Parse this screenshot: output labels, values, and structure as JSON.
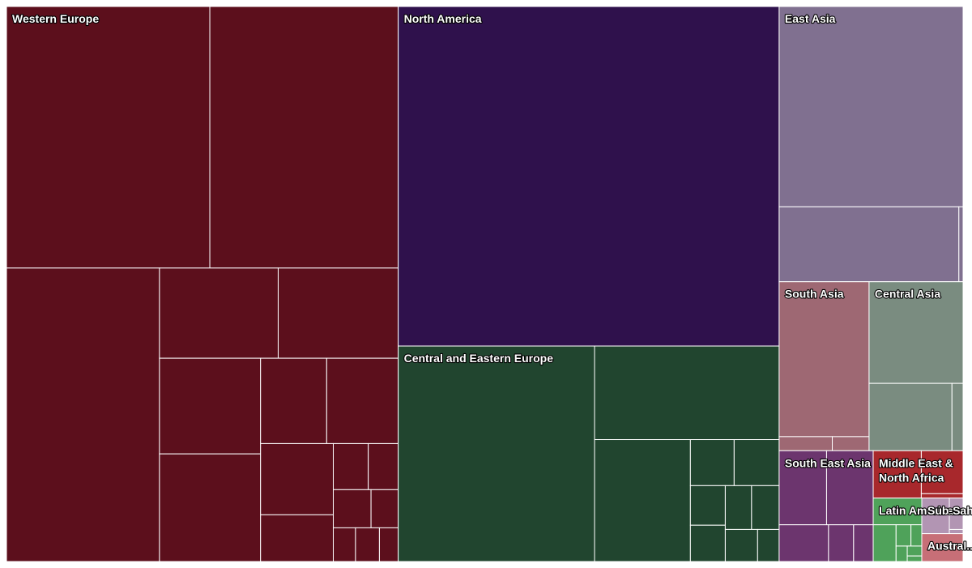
{
  "chart_data": {
    "type": "treemap",
    "title": "",
    "regions": [
      {
        "name": "Western Europe",
        "label_lines": [
          "Western Europe"
        ],
        "color": "#5c0f1c",
        "values": [
          9240,
          8560,
          7800,
          1860,
          1880,
          1680,
          1890,
          980,
          1060,
          900,
          590,
          280,
          240,
          250,
          180,
          130,
          140,
          110
        ]
      },
      {
        "name": "North America",
        "label_lines": [
          "North America"
        ],
        "color": "#2f114c",
        "values": [
          22470
        ]
      },
      {
        "name": "Central and Eastern Europe",
        "label_lines": [
          "Central and Eastern Europe"
        ],
        "color": "#21452f",
        "values": [
          7350,
          3000,
          2030,
          350,
          360,
          240,
          220,
          200,
          210,
          180,
          120
        ]
      },
      {
        "name": "East Asia",
        "label_lines": [
          "East Asia"
        ],
        "color": "#807090",
        "values": [
          6400,
          2340,
          55
        ]
      },
      {
        "name": "South Asia",
        "label_lines": [
          "South Asia"
        ],
        "color": "#9e6873",
        "values": [
          2420,
          130,
          90
        ]
      },
      {
        "name": "Central Asia",
        "label_lines": [
          "Central Asia"
        ],
        "color": "#7a8c80",
        "values": [
          1660,
          970,
          130
        ]
      },
      {
        "name": "South East Asia",
        "label_lines": [
          "South East Asia"
        ],
        "color": "#6c356e",
        "values": [
          610,
          600,
          315,
          160,
          125
        ]
      },
      {
        "name": "Middle East & North Africa",
        "label_lines": [
          "Middle East &",
          "North Africa"
        ],
        "color": "#a8282c",
        "values": [
          396,
          312,
          32
        ]
      },
      {
        "name": "Latin America & Caribbean",
        "label_lines": [
          "Latin America..."
        ],
        "color": "#4fa25a",
        "values": [
          225,
          146,
          55,
          40,
          30,
          25,
          14
        ]
      },
      {
        "name": "Sub-Saharan Africa",
        "label_lines": [
          "Sub-Saharan Africa"
        ],
        "color": "#b295b3",
        "values": [
          170,
          40,
          35,
          10
        ]
      },
      {
        "name": "Australia & Oceania",
        "label_lines": [
          "Austral..."
        ],
        "color": "#c76f77",
        "values": [
          200
        ]
      }
    ]
  }
}
